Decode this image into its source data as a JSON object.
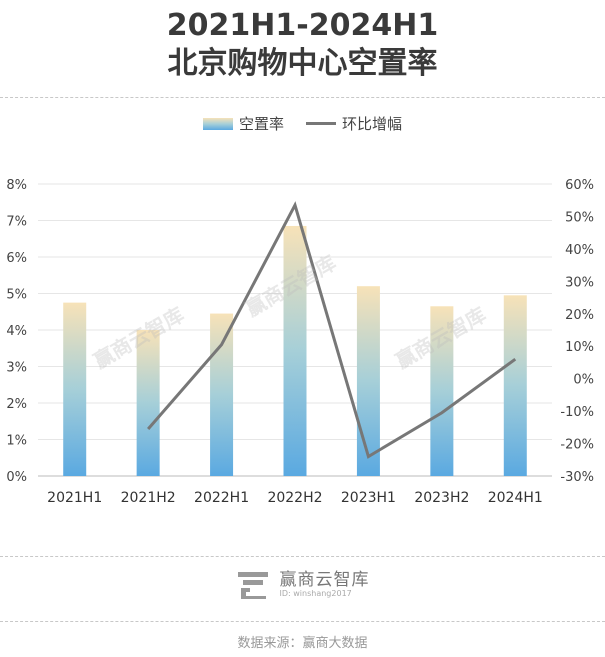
{
  "title_line1": "2021H1-2024H1",
  "title_line2": "北京购物中心空置率",
  "legend": {
    "bar": "空置率",
    "line": "环比增幅"
  },
  "brand": {
    "name": "赢商云智库",
    "id": "ID: winshang2017"
  },
  "watermark": "赢商云智库",
  "source": "数据来源：赢商大数据",
  "colors": {
    "bar_bottom": "#5aa9e1",
    "bar_mid": "#a6cfd8",
    "bar_top": "#f7e2b8",
    "line": "#777777"
  },
  "chart_data": {
    "type": "bar",
    "categories": [
      "2021H1",
      "2021H2",
      "2022H1",
      "2022H2",
      "2023H1",
      "2023H2",
      "2024H1"
    ],
    "series": [
      {
        "name": "空置率",
        "type": "bar",
        "axis": "left",
        "values": [
          4.75,
          4.0,
          4.45,
          6.85,
          5.2,
          4.65,
          4.95
        ]
      },
      {
        "name": "环比增幅",
        "type": "line",
        "axis": "right",
        "values": [
          null,
          -15.5,
          10.5,
          53.5,
          -24.0,
          -10.5,
          6.0
        ]
      }
    ],
    "y_left": {
      "min": 0,
      "max": 8,
      "step": 1,
      "format": "percent",
      "ticks": [
        "0%",
        "1%",
        "2%",
        "3%",
        "4%",
        "5%",
        "6%",
        "7%",
        "8%"
      ]
    },
    "y_right": {
      "min": -30,
      "max": 60,
      "step": 10,
      "format": "percent",
      "ticks": [
        "-30%",
        "-20%",
        "-10%",
        "0%",
        "10%",
        "20%",
        "30%",
        "40%",
        "50%",
        "60%"
      ]
    },
    "grid": true,
    "legend_position": "top-center"
  }
}
